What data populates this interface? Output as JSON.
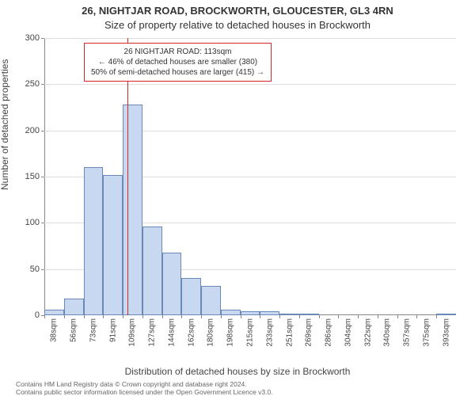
{
  "header": {
    "address": "26, NIGHTJAR ROAD, BROCKWORTH, GLOUCESTER, GL3 4RN",
    "subtitle": "Size of property relative to detached houses in Brockworth"
  },
  "chart": {
    "type": "histogram",
    "ylabel": "Number of detached properties",
    "xlabel": "Distribution of detached houses by size in Brockworth",
    "ylim": [
      0,
      300
    ],
    "ytick_step": 50,
    "bar_fill": "#c8d8f0",
    "bar_stroke": "#6a88b8",
    "grid_color": "#dddddd",
    "axis_color": "#888888",
    "background_color": "#ffffff",
    "tick_fontsize": 10,
    "label_fontsize": 12,
    "marker": {
      "value_sqm": 113,
      "color": "#d62728"
    },
    "annotation": {
      "line1": "26 NIGHTJAR ROAD: 113sqm",
      "line2": "← 46% of detached houses are smaller (380)",
      "line3": "50% of semi-detached houses are larger (415) →",
      "border_color": "#d62728",
      "bg_color": "#ffffff",
      "fontsize": 10
    },
    "x_ticks": [
      "38sqm",
      "56sqm",
      "73sqm",
      "91sqm",
      "109sqm",
      "127sqm",
      "144sqm",
      "162sqm",
      "180sqm",
      "198sqm",
      "215sqm",
      "233sqm",
      "251sqm",
      "269sqm",
      "286sqm",
      "304sqm",
      "322sqm",
      "340sqm",
      "357sqm",
      "375sqm",
      "393sqm"
    ],
    "bars": [
      {
        "label": "38sqm",
        "value": 6
      },
      {
        "label": "56sqm",
        "value": 18
      },
      {
        "label": "73sqm",
        "value": 160
      },
      {
        "label": "91sqm",
        "value": 152
      },
      {
        "label": "109sqm",
        "value": 228
      },
      {
        "label": "127sqm",
        "value": 96
      },
      {
        "label": "144sqm",
        "value": 68
      },
      {
        "label": "162sqm",
        "value": 40
      },
      {
        "label": "180sqm",
        "value": 32
      },
      {
        "label": "198sqm",
        "value": 6
      },
      {
        "label": "215sqm",
        "value": 4
      },
      {
        "label": "233sqm",
        "value": 4
      },
      {
        "label": "251sqm",
        "value": 2
      },
      {
        "label": "269sqm",
        "value": 2
      },
      {
        "label": "286sqm",
        "value": 0
      },
      {
        "label": "304sqm",
        "value": 0
      },
      {
        "label": "322sqm",
        "value": 0
      },
      {
        "label": "340sqm",
        "value": 0
      },
      {
        "label": "357sqm",
        "value": 0
      },
      {
        "label": "375sqm",
        "value": 0
      },
      {
        "label": "393sqm",
        "value": 2
      }
    ]
  },
  "footer": {
    "line1": "Contains HM Land Registry data © Crown copyright and database right 2024.",
    "line2": "Contains public sector information licensed under the Open Government Licence v3.0."
  }
}
